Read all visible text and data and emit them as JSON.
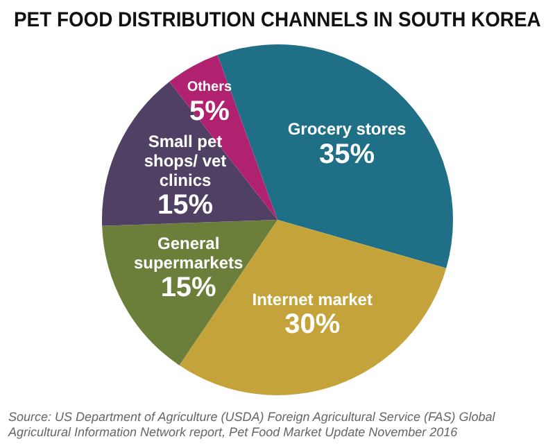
{
  "chart_data": {
    "type": "pie",
    "title": "PET FOOD DISTRIBUTION CHANNELS IN SOUTH KOREA",
    "categories": [
      "Grocery stores",
      "Internet market",
      "General supermarkets",
      "Small pet shops/ vet clinics",
      "Others"
    ],
    "values": [
      35,
      30,
      15,
      15,
      5
    ],
    "value_labels": [
      "35%",
      "30%",
      "15%",
      "15%",
      "5%"
    ],
    "colors": [
      "#1f6f87",
      "#c4a43a",
      "#6b7f3b",
      "#4f4064",
      "#b0216f"
    ],
    "legend": false,
    "annotations": [
      "Source: US Department of Agriculture (USDA) Foreign Agricultural Service (FAS) Global Agricultural Information Network report, Pet Food Market Update November 2016"
    ]
  }
}
